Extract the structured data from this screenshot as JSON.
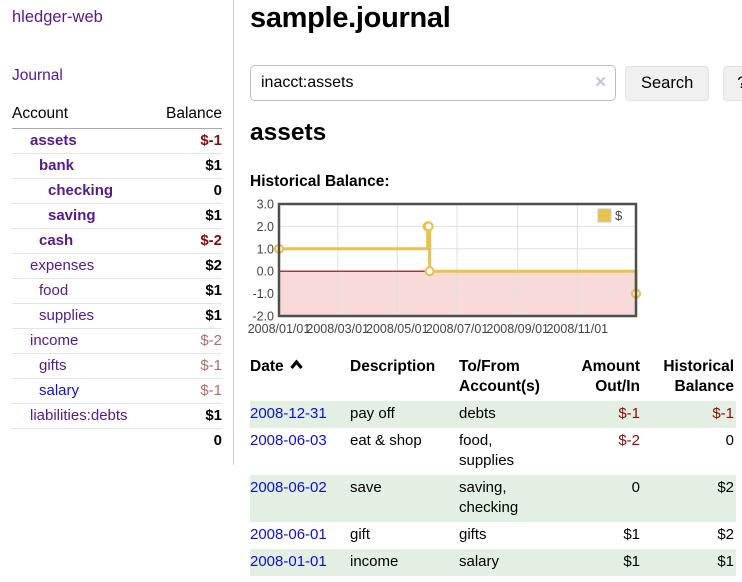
{
  "app": {
    "brand": "hledger-web"
  },
  "sidebar": {
    "journal_link": "Journal",
    "accounts_header": {
      "account": "Account",
      "balance": "Balance"
    },
    "accounts": [
      {
        "name": "assets",
        "depth": 0,
        "balance": "$-1",
        "bold": true
      },
      {
        "name": "bank",
        "depth": 1,
        "balance": "$1",
        "bold": true
      },
      {
        "name": "checking",
        "depth": 2,
        "balance": "0",
        "bold": true
      },
      {
        "name": "saving",
        "depth": 2,
        "balance": "$1",
        "bold": true
      },
      {
        "name": "cash",
        "depth": 1,
        "balance": "$-2",
        "bold": true
      },
      {
        "name": "expenses",
        "depth": 0,
        "balance": "$2",
        "bold": false
      },
      {
        "name": "food",
        "depth": 1,
        "balance": "$1",
        "bold": false
      },
      {
        "name": "supplies",
        "depth": 1,
        "balance": "$1",
        "bold": false
      },
      {
        "name": "income",
        "depth": 0,
        "balance": "$-2",
        "bold": false
      },
      {
        "name": "gifts",
        "depth": 1,
        "balance": "$-1",
        "bold": false
      },
      {
        "name": "salary",
        "depth": 1,
        "balance": "$-1",
        "bold": false,
        "link_state": "unvisited"
      },
      {
        "name": "liabilities:debts",
        "depth": 0,
        "balance": "$1",
        "bold": false
      }
    ],
    "total": "0"
  },
  "header": {
    "title": "sample.journal"
  },
  "search": {
    "value": "inacct:assets",
    "clear_icon": "✕",
    "button_label": "Search",
    "help_label": "?"
  },
  "account_page": {
    "title": "assets",
    "chart_label": "Historical Balance:"
  },
  "chart_data": {
    "type": "line",
    "step": true,
    "title": "Historical Balance:",
    "series": [
      {
        "name": "$",
        "color": "#e8c24a",
        "points": [
          [
            "2008-01-01",
            1
          ],
          [
            "2008-06-01",
            2
          ],
          [
            "2008-06-02",
            2
          ],
          [
            "2008-06-03",
            0
          ],
          [
            "2008-12-31",
            -1
          ]
        ]
      }
    ],
    "x_range": [
      "2008/01/01",
      "2008/12/31"
    ],
    "x_ticks": [
      "2008/01/01",
      "2008/03/01",
      "2008/05/01",
      "2008/07/01",
      "2008/09/01",
      "2008/11/01"
    ],
    "y_ticks": [
      "3.0",
      "2.0",
      "1.0",
      "0.0",
      "-1.0",
      "-2.0"
    ],
    "ylim": [
      -2,
      3
    ],
    "grid": true,
    "legend": {
      "position": "top-right",
      "label": "$"
    },
    "zero_line_color": "#8b0000",
    "negative_region_fill": "#f9dada",
    "grid_color": "#e0e0e0",
    "border_color": "#4f4f4f",
    "tick_label_color": "#444444"
  },
  "register": {
    "columns": [
      {
        "label": "Date",
        "sorted": "ascending"
      },
      {
        "label": "Description"
      },
      {
        "label": "To/From Account(s)"
      },
      {
        "label": "Amount Out/In"
      },
      {
        "label": "Historical Balance"
      }
    ],
    "rows": [
      {
        "date": "2008-12-31",
        "description": "pay off",
        "accounts": "debts",
        "amount": "$-1",
        "balance": "$-1"
      },
      {
        "date": "2008-06-03",
        "description": "eat & shop",
        "accounts": "food, supplies",
        "amount": "$-2",
        "balance": "0"
      },
      {
        "date": "2008-06-02",
        "description": "save",
        "accounts": "saving, checking",
        "amount": "0",
        "balance": "$2"
      },
      {
        "date": "2008-06-01",
        "description": "gift",
        "accounts": "gifts",
        "amount": "$1",
        "balance": "$2"
      },
      {
        "date": "2008-01-01",
        "description": "income",
        "accounts": "salary",
        "amount": "$1",
        "balance": "$1"
      }
    ]
  }
}
